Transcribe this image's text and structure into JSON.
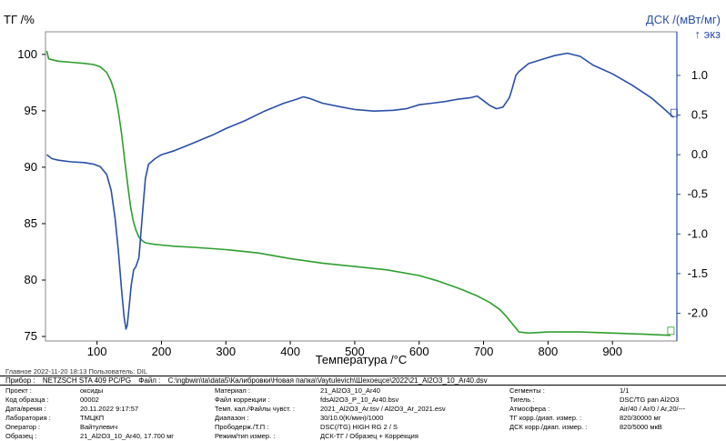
{
  "chart_data": {
    "type": "line",
    "x_ticks": [
      100,
      200,
      300,
      400,
      500,
      600,
      700,
      800,
      900
    ],
    "xlabel": "Температура /°C",
    "xlim": [
      20,
      1000
    ],
    "left_axis": {
      "label": "ТГ /%",
      "ticks": [
        75,
        80,
        85,
        90,
        95,
        100
      ],
      "lim": [
        74.6,
        102
      ]
    },
    "right_axis": {
      "label": "ДСК /(мВт/мг)",
      "sublabel": "↑ экз",
      "ticks": [
        "1.0",
        "0.5",
        "0.0",
        "-0.5",
        "-1.0",
        "-1.5",
        "-2.0"
      ],
      "tick_values": [
        1.0,
        0.5,
        0.0,
        -0.5,
        -1.0,
        -1.5,
        -2.0
      ],
      "lim": [
        -2.35,
        1.55
      ]
    },
    "series": [
      {
        "axis": "left",
        "color": "#2e9e2e",
        "x": [
          22,
          25,
          40,
          60,
          80,
          95,
          105,
          115,
          122,
          128,
          133,
          138,
          143,
          148,
          152,
          156,
          160,
          165,
          170,
          175,
          185,
          200,
          220,
          250,
          300,
          350,
          400,
          450,
          500,
          550,
          600,
          630,
          660,
          690,
          710,
          725,
          735,
          745,
          755,
          770,
          800,
          850,
          900,
          950,
          990
        ],
        "y": [
          100.3,
          99.6,
          99.4,
          99.3,
          99.2,
          99.1,
          98.9,
          98.4,
          97.6,
          96.5,
          95.0,
          93.0,
          90.6,
          88.3,
          86.5,
          85.3,
          84.5,
          83.8,
          83.5,
          83.3,
          83.2,
          83.1,
          83.0,
          82.9,
          82.7,
          82.4,
          81.9,
          81.5,
          81.2,
          80.9,
          80.4,
          79.9,
          79.3,
          78.6,
          78.0,
          77.4,
          76.8,
          76.1,
          75.4,
          75.3,
          75.4,
          75.4,
          75.3,
          75.2,
          75.1
        ]
      },
      {
        "axis": "right",
        "color": "#2a4fa8",
        "x": [
          22,
          30,
          40,
          60,
          80,
          95,
          105,
          115,
          122,
          128,
          133,
          138,
          142,
          145,
          147,
          150,
          153,
          157,
          160,
          165,
          170,
          175,
          180,
          190,
          200,
          220,
          250,
          280,
          300,
          330,
          360,
          390,
          410,
          420,
          430,
          450,
          480,
          500,
          530,
          560,
          580,
          600,
          620,
          640,
          660,
          680,
          690,
          700,
          710,
          720,
          730,
          740,
          745,
          750,
          755,
          770,
          790,
          810,
          830,
          850,
          870,
          900,
          930,
          960,
          980,
          995
        ],
        "y": [
          0.0,
          -0.05,
          -0.07,
          -0.09,
          -0.1,
          -0.12,
          -0.15,
          -0.25,
          -0.45,
          -0.8,
          -1.2,
          -1.7,
          -2.05,
          -2.2,
          -2.15,
          -1.9,
          -1.65,
          -1.45,
          -1.42,
          -1.3,
          -0.8,
          -0.3,
          -0.12,
          -0.05,
          0.0,
          0.05,
          0.15,
          0.25,
          0.33,
          0.43,
          0.55,
          0.65,
          0.7,
          0.73,
          0.71,
          0.65,
          0.6,
          0.57,
          0.55,
          0.56,
          0.58,
          0.63,
          0.65,
          0.67,
          0.7,
          0.72,
          0.74,
          0.68,
          0.62,
          0.58,
          0.6,
          0.72,
          0.85,
          1.0,
          1.05,
          1.15,
          1.2,
          1.25,
          1.28,
          1.24,
          1.13,
          1.02,
          0.88,
          0.72,
          0.58,
          0.47
        ]
      }
    ]
  },
  "footer": {
    "meta_line": "Главное   2022-11-20 18:13   Пользователь: DIL",
    "device_label": "Прибор :",
    "device_value": "NETZSCH STA 409 PC/PG",
    "file_label": "Файл :",
    "file_value": "C:\\ngbwin\\ta\\data5\\Калибровки\\Новая папка\\Vaytulevich\\Шехоецсе\\2022\\21_Al2O3_10_Ar40.dsv",
    "col1": [
      {
        "label": "Проект :",
        "value": "оксиды"
      },
      {
        "label": "Код образца :",
        "value": "00002"
      },
      {
        "label": "Дата/время :",
        "value": "20.11.2022 9:17:57"
      },
      {
        "label": "Лаборатория :",
        "value": "ТМЦКП"
      },
      {
        "label": "Оператор :",
        "value": "Вайтулевич"
      },
      {
        "label": "Образец :",
        "value": "21_Al2O3_10_Ar40, 17.700 мг"
      }
    ],
    "col2": [
      {
        "label": "Материал :",
        "value": "21_Al2O3_10_Ar40"
      },
      {
        "label": "Файл коррекции :",
        "value": "fdsAl2O3_P_10_Ar40.bsv"
      },
      {
        "label": "Темп. кал./Файлы чувст. :",
        "value": "2021_Al2O3_Ar.tsv / Al2O3_Ar_2021.esv"
      },
      {
        "label": "Диапазон :",
        "value": "30/10.0(K/мин)/1000"
      },
      {
        "label": "Прободерж./Т.П :",
        "value": "DSC(/TG) HIGH RG 2 / S"
      },
      {
        "label": "Режим/тип измер. :",
        "value": "ДСК-ТГ / Образец + Коррекция"
      }
    ],
    "col3": [
      {
        "label": "Сегменты :",
        "value": "1/1"
      },
      {
        "label": "Тигель :",
        "value": "DSC/TG pan Al2O3"
      },
      {
        "label": "Атмосфера :",
        "value": "Air/40 / Ar/0 / Ar,20/---"
      },
      {
        "label": "ТГ корр./диап. измер. :",
        "value": "820/30000 мг"
      },
      {
        "label": "ДСК корр./диап. измер. :",
        "value": "820/5000 мкВ"
      }
    ]
  }
}
